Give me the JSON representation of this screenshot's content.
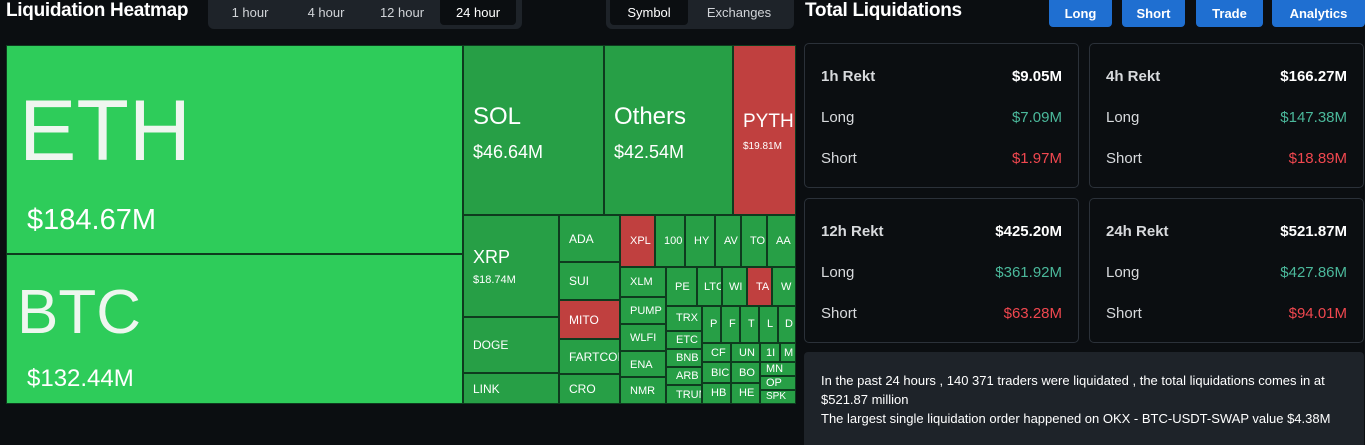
{
  "heatmap": {
    "title": "Liquidation Heatmap",
    "timeframes": [
      "1 hour",
      "4 hour",
      "12 hour",
      "24 hour"
    ],
    "active_timeframe": "24 hour",
    "views": [
      "Symbol",
      "Exchanges"
    ],
    "active_view": "Symbol",
    "cells": {
      "eth": {
        "symbol": "ETH",
        "value": "$184.67M"
      },
      "btc": {
        "symbol": "BTC",
        "value": "$132.44M"
      },
      "sol": {
        "symbol": "SOL",
        "value": "$46.64M"
      },
      "others": {
        "symbol": "Others",
        "value": "$42.54M"
      },
      "pyth": {
        "symbol": "PYTH",
        "value": "$19.81M"
      },
      "xrp": {
        "symbol": "XRP",
        "value": "$18.74M"
      },
      "ada": "ADA",
      "sui": "SUI",
      "mito": "MITO",
      "fartcoin": "FARTCOI",
      "doge": "DOGE",
      "link": "LINK",
      "cro": "CRO",
      "xpl": "XPL",
      "t1000": "100",
      "hy": "HY",
      "av": "AV",
      "to": "TO",
      "aa": "AA",
      "xlm": "XLM",
      "pump": "PUMP",
      "wlfi": "WLFI",
      "ena": "ENA",
      "nmr": "NMR",
      "pe": "PE",
      "lt": "LTC",
      "wi": "WI",
      "ta": "TA",
      "w": "W",
      "trx": "TRX",
      "p": "P",
      "f": "F",
      "t": "T",
      "l": "L",
      "d": "D",
      "etc": "ETC",
      "bnb": "BNB",
      "arb": "ARB",
      "trun": "TRUN",
      "cf": "CF",
      "un": "UN",
      "one": "1I",
      "m": "M",
      "bi": "BIC",
      "bo": "BO",
      "mn": "MN",
      "op": "OP",
      "hb": "HB",
      "he": "HE",
      "spk": "SPK"
    }
  },
  "total": {
    "title": "Total Liquidations",
    "buttons": [
      "Long",
      "Short",
      "Trade",
      "Analytics"
    ],
    "long_label": "Long",
    "short_label": "Short",
    "cards": [
      {
        "title": "1h Rekt",
        "total": "$9.05M",
        "long": "$7.09M",
        "short": "$1.97M"
      },
      {
        "title": "4h Rekt",
        "total": "$166.27M",
        "long": "$147.38M",
        "short": "$18.89M"
      },
      {
        "title": "12h Rekt",
        "total": "$425.20M",
        "long": "$361.92M",
        "short": "$63.28M"
      },
      {
        "title": "24h Rekt",
        "total": "$521.87M",
        "long": "$427.86M",
        "short": "$94.01M"
      }
    ],
    "summary_line1": "In the past 24 hours , 140 371 traders were liquidated , the total liquidations comes in at $521.87 million",
    "summary_line2": "The largest single liquidation order happened on OKX - BTC-USDT-SWAP value $4.38M"
  },
  "colors": {
    "accent_button": "#1f6fd1",
    "long_green": "#4bb89b",
    "short_red": "#f0474f",
    "heat_green_bright": "#2ecc5a",
    "heat_green": "#279f46",
    "heat_red": "#c0403f"
  }
}
